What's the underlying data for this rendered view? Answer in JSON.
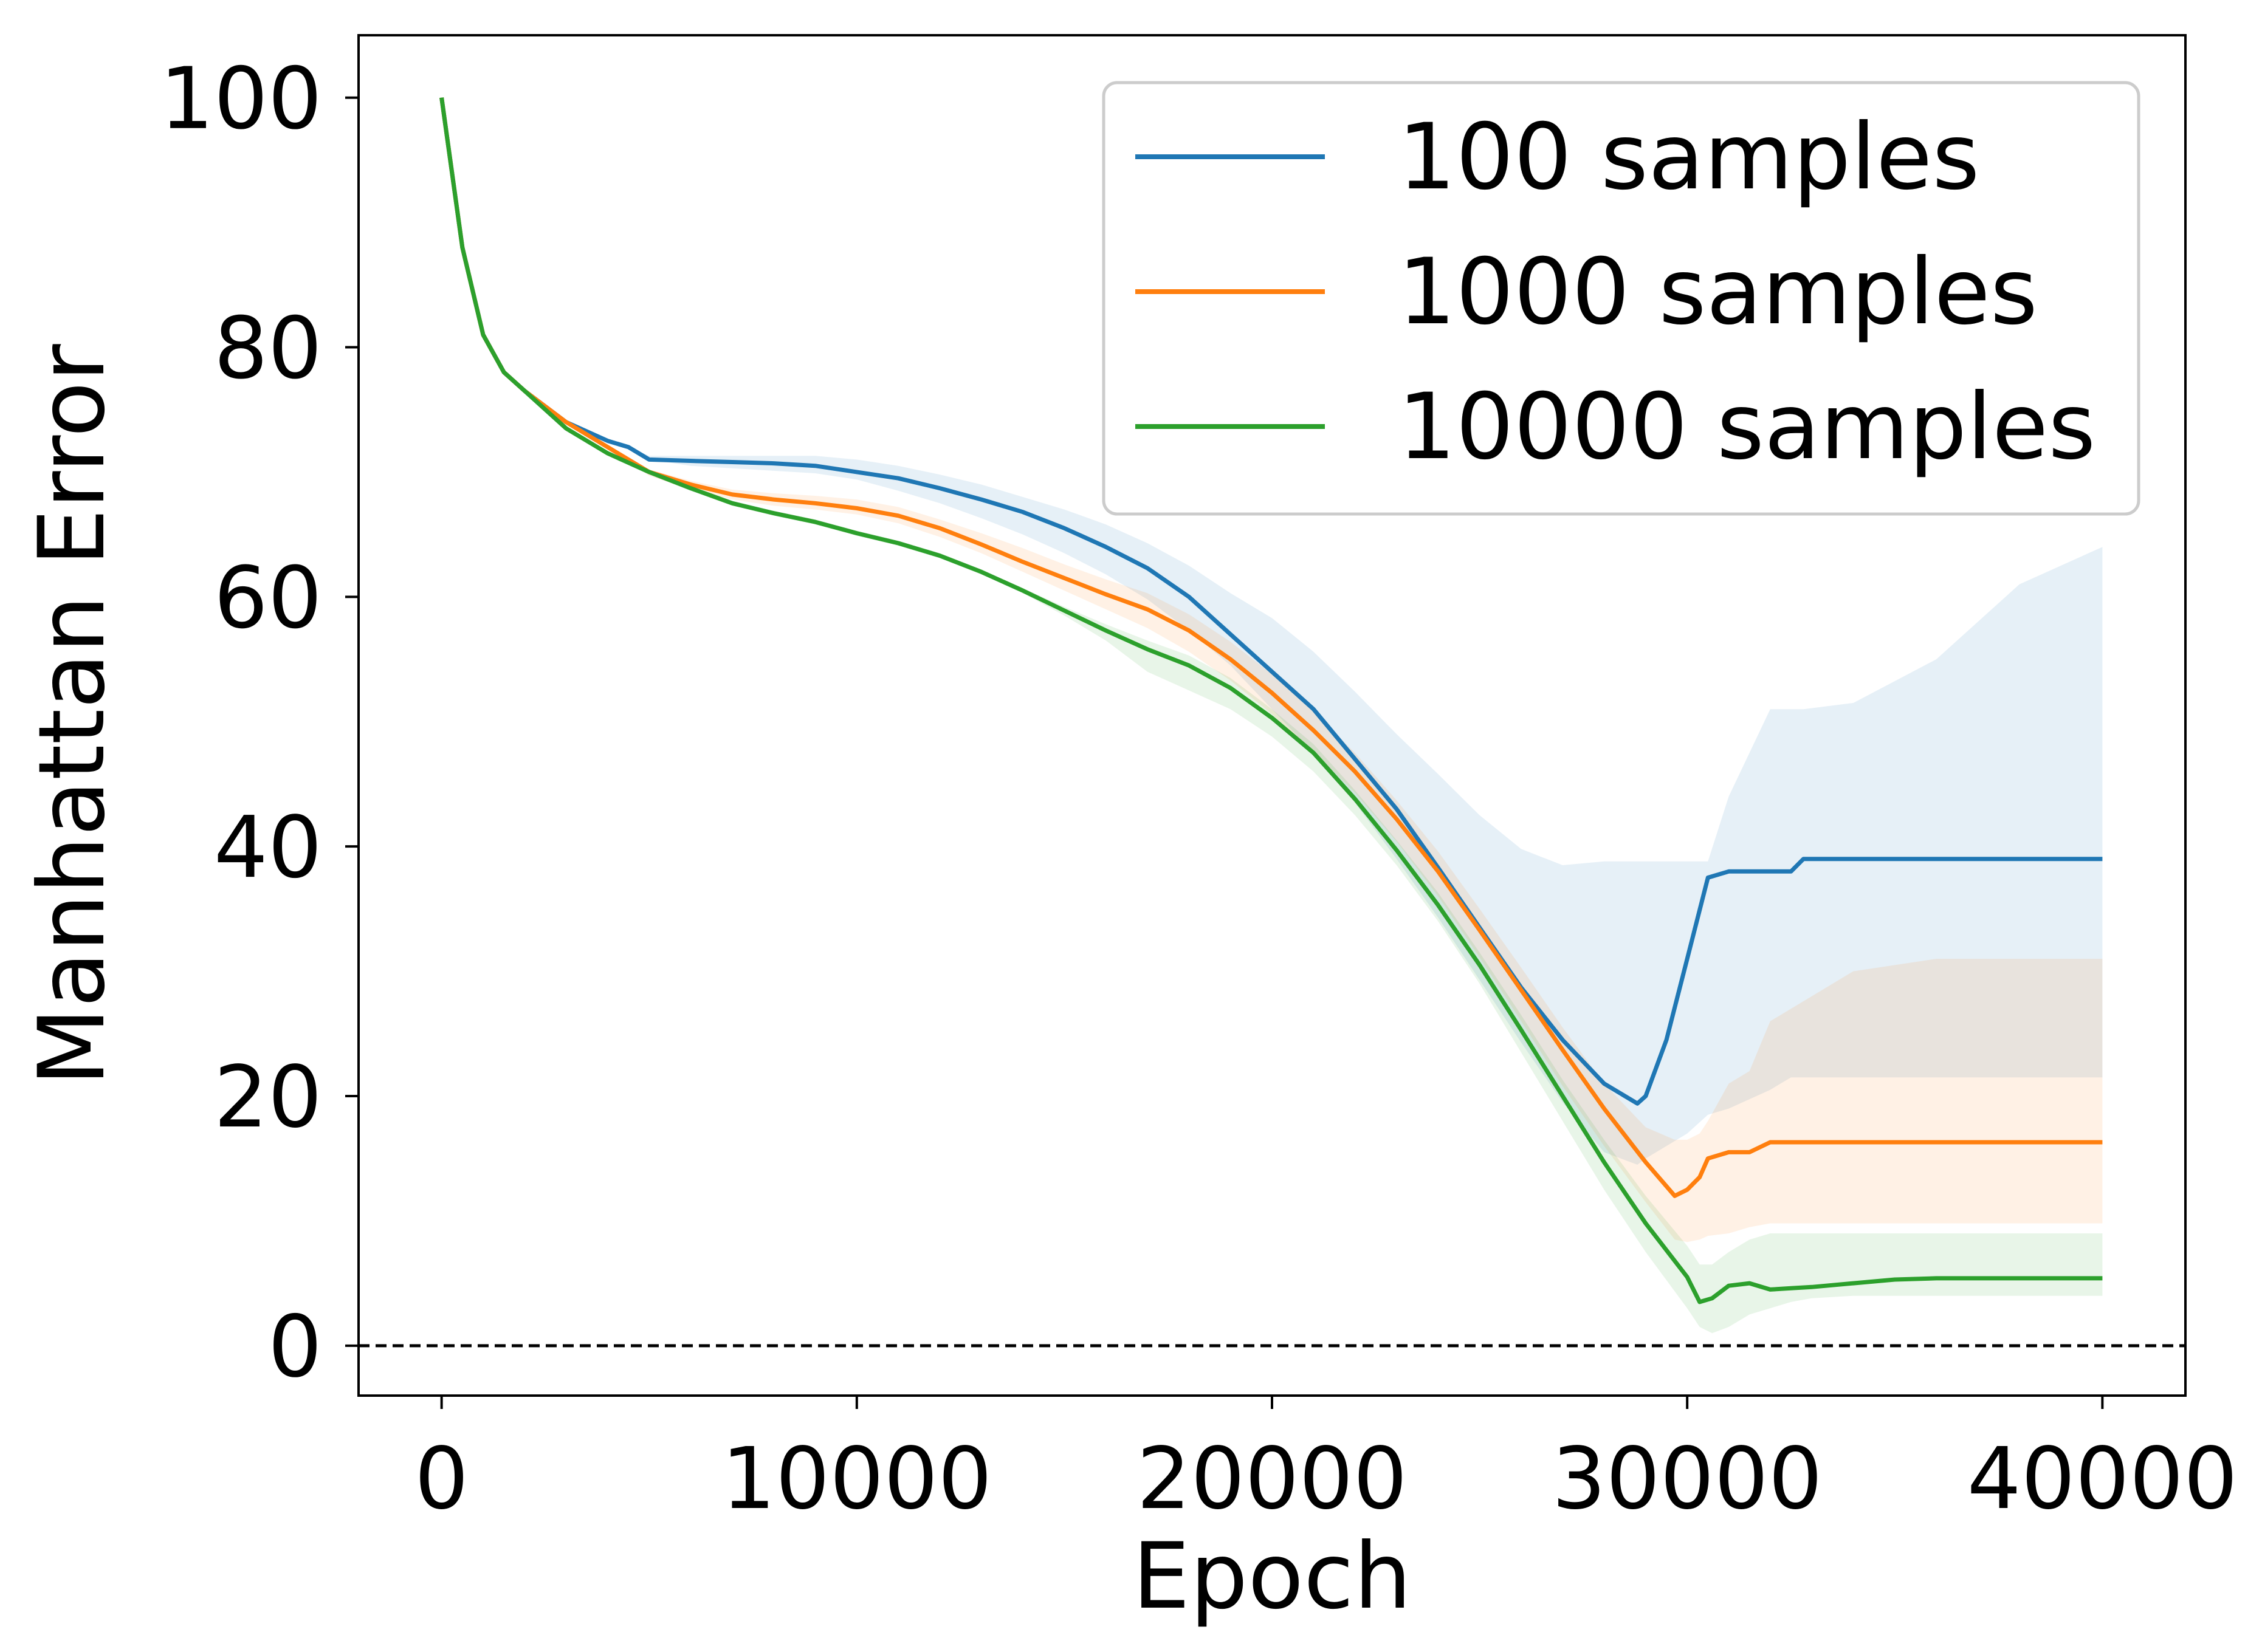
{
  "chart_data": {
    "type": "line",
    "title": "",
    "xlabel": "Epoch",
    "ylabel": "Manhattan Error",
    "xlim": [
      -2000,
      42000
    ],
    "ylim": [
      -4,
      105
    ],
    "xticks": [
      0,
      10000,
      20000,
      30000,
      40000
    ],
    "yticks": [
      0,
      20,
      40,
      60,
      80,
      100
    ],
    "xtick_labels": [
      "0",
      "10000",
      "20000",
      "30000",
      "40000"
    ],
    "ytick_labels": [
      "0",
      "20",
      "40",
      "60",
      "80",
      "100"
    ],
    "grid": false,
    "legend_position": "top-right",
    "reference_line": {
      "y": 0,
      "style": "dashed",
      "color": "#000000"
    },
    "series": [
      {
        "name": "100 samples",
        "color": "#1f77b4",
        "x": [
          0,
          500,
          1000,
          1500,
          2000,
          3000,
          4000,
          4500,
          5000,
          6000,
          7000,
          8000,
          9000,
          10000,
          11000,
          12000,
          13000,
          14000,
          15000,
          16000,
          17000,
          18000,
          19000,
          20000,
          21000,
          22000,
          23000,
          24000,
          25000,
          26000,
          27000,
          28000,
          28800,
          29000,
          29500,
          30000,
          30500,
          31000,
          32000,
          32500,
          32800,
          34000,
          36000,
          38000,
          40000
        ],
        "y": [
          100,
          88,
          81,
          78,
          76.5,
          74,
          72.5,
          72,
          71,
          70.9,
          70.8,
          70.7,
          70.5,
          70,
          69.5,
          68.7,
          67.8,
          66.8,
          65.5,
          64,
          62.3,
          60,
          57,
          54,
          51,
          47,
          43,
          38.3,
          33.5,
          28.7,
          24.5,
          21,
          19.4,
          20,
          24.5,
          31,
          37.5,
          38,
          38,
          38,
          39,
          39,
          39,
          39,
          39
        ],
        "band_lower": [
          100,
          88,
          81,
          78,
          76.5,
          74,
          72.5,
          72,
          71,
          70.5,
          70.3,
          70.1,
          69.9,
          69.4,
          68.5,
          67.5,
          66.3,
          65,
          63.5,
          61.8,
          59.8,
          57.3,
          54.5,
          51,
          47.5,
          43.5,
          39,
          34.3,
          29.3,
          24.3,
          19.5,
          15.5,
          14.5,
          15,
          16,
          17,
          18.5,
          19,
          20.5,
          21.5,
          21.5,
          21.5,
          21.5,
          21.5,
          21.5
        ],
        "band_upper": [
          100,
          88,
          81,
          78,
          76.5,
          74,
          72.5,
          72,
          71.3,
          71.3,
          71.3,
          71.3,
          71.3,
          71,
          70.5,
          69.8,
          69,
          68,
          67,
          65.8,
          64.3,
          62.5,
          60.3,
          58.3,
          55.6,
          52.4,
          49,
          45.8,
          42.5,
          39.8,
          38.5,
          38.8,
          38.8,
          38.8,
          38.8,
          38.8,
          38.8,
          44,
          51,
          51,
          51,
          51.5,
          55,
          61,
          64
        ]
      },
      {
        "name": "1000 samples",
        "color": "#ff7f0e",
        "x": [
          0,
          500,
          1000,
          1500,
          2000,
          3000,
          4000,
          5000,
          6000,
          7000,
          8000,
          9000,
          10000,
          11000,
          12000,
          13000,
          14000,
          15000,
          16000,
          17000,
          18000,
          19000,
          20000,
          21000,
          22000,
          23000,
          24000,
          25000,
          26000,
          27000,
          28000,
          29000,
          29700,
          30000,
          30300,
          30500,
          31000,
          31500,
          32000,
          34000,
          36000,
          38000,
          40000
        ],
        "y": [
          100,
          88,
          81,
          78,
          76.5,
          74,
          72,
          70,
          69,
          68.2,
          67.8,
          67.5,
          67.1,
          66.5,
          65.5,
          64.2,
          62.8,
          61.5,
          60.2,
          59,
          57.3,
          55,
          52.3,
          49.3,
          46,
          42.2,
          38,
          33.3,
          28.5,
          23.7,
          19,
          14.7,
          12,
          12.5,
          13.5,
          15,
          15.5,
          15.5,
          16.3,
          16.3,
          16.3,
          16.3,
          16.3
        ],
        "band_lower": [
          100,
          88,
          81,
          78,
          76.5,
          74,
          72,
          69.7,
          68.6,
          67.8,
          67.3,
          67,
          66.6,
          65.9,
          64.8,
          63.5,
          62,
          60.5,
          59,
          57.5,
          55.6,
          53.3,
          50.6,
          47.6,
          44.3,
          40.4,
          36,
          31.1,
          26,
          20.8,
          16,
          11.5,
          8.5,
          8.3,
          8.5,
          8.8,
          9,
          9.5,
          9.8,
          9.8,
          9.8,
          9.8,
          9.8
        ],
        "band_upper": [
          100,
          88,
          81,
          78,
          76.5,
          74,
          72.2,
          70.2,
          69.3,
          68.6,
          68.3,
          68.1,
          67.8,
          67.2,
          66.2,
          65.1,
          63.9,
          62.6,
          61.4,
          60.3,
          58.6,
          56.4,
          53.8,
          50.8,
          47.5,
          43.7,
          39.6,
          35,
          30.3,
          25.5,
          21,
          17.5,
          16.5,
          16.5,
          17,
          18,
          21,
          22,
          26,
          30,
          31,
          31,
          31
        ]
      },
      {
        "name": "10000 samples",
        "color": "#2ca02c",
        "x": [
          0,
          500,
          1000,
          1500,
          2000,
          3000,
          4000,
          5000,
          6000,
          7000,
          8000,
          9000,
          10000,
          11000,
          12000,
          13000,
          14000,
          15000,
          16000,
          17000,
          18000,
          19000,
          20000,
          21000,
          22000,
          23000,
          24000,
          25000,
          26000,
          27000,
          28000,
          29000,
          30000,
          30300,
          30600,
          31000,
          31500,
          32000,
          32500,
          33000,
          34000,
          35000,
          36000,
          38000,
          40000
        ],
        "y": [
          100,
          88,
          81,
          78,
          76.5,
          73.5,
          71.5,
          70,
          68.7,
          67.5,
          66.7,
          66,
          65.1,
          64.3,
          63.3,
          62,
          60.5,
          58.9,
          57.3,
          55.8,
          54.5,
          52.7,
          50.3,
          47.5,
          43.8,
          39.7,
          35.3,
          30.5,
          25.3,
          20,
          14.7,
          9.8,
          5.5,
          3.5,
          3.8,
          4.8,
          5,
          4.5,
          4.6,
          4.7,
          5,
          5.3,
          5.4,
          5.4,
          5.4
        ],
        "band_lower": [
          100,
          88,
          81,
          78,
          76.5,
          73.5,
          71.3,
          69.8,
          68.5,
          67.3,
          66.5,
          65.8,
          64.9,
          64.1,
          63.1,
          61.8,
          60.3,
          58.5,
          56.5,
          54,
          52.5,
          51,
          48.8,
          46,
          42.5,
          38.5,
          34,
          29,
          23.5,
          18,
          12.5,
          7.5,
          3,
          1.5,
          1,
          1.5,
          2.5,
          3,
          3.5,
          3.8,
          4,
          4,
          4,
          4,
          4
        ],
        "band_upper": [
          100,
          88,
          81,
          78,
          76.5,
          73.5,
          71.7,
          70.2,
          68.9,
          67.7,
          66.9,
          66.2,
          65.3,
          64.5,
          63.5,
          62.2,
          60.7,
          59.2,
          57.8,
          56.5,
          55.3,
          53.5,
          51,
          48.2,
          44.5,
          40.5,
          36.3,
          31.5,
          26.5,
          21.3,
          16.5,
          12,
          8,
          6.5,
          6.5,
          7.5,
          8.5,
          9,
          9,
          9,
          9,
          9,
          9,
          9,
          9
        ]
      }
    ]
  }
}
